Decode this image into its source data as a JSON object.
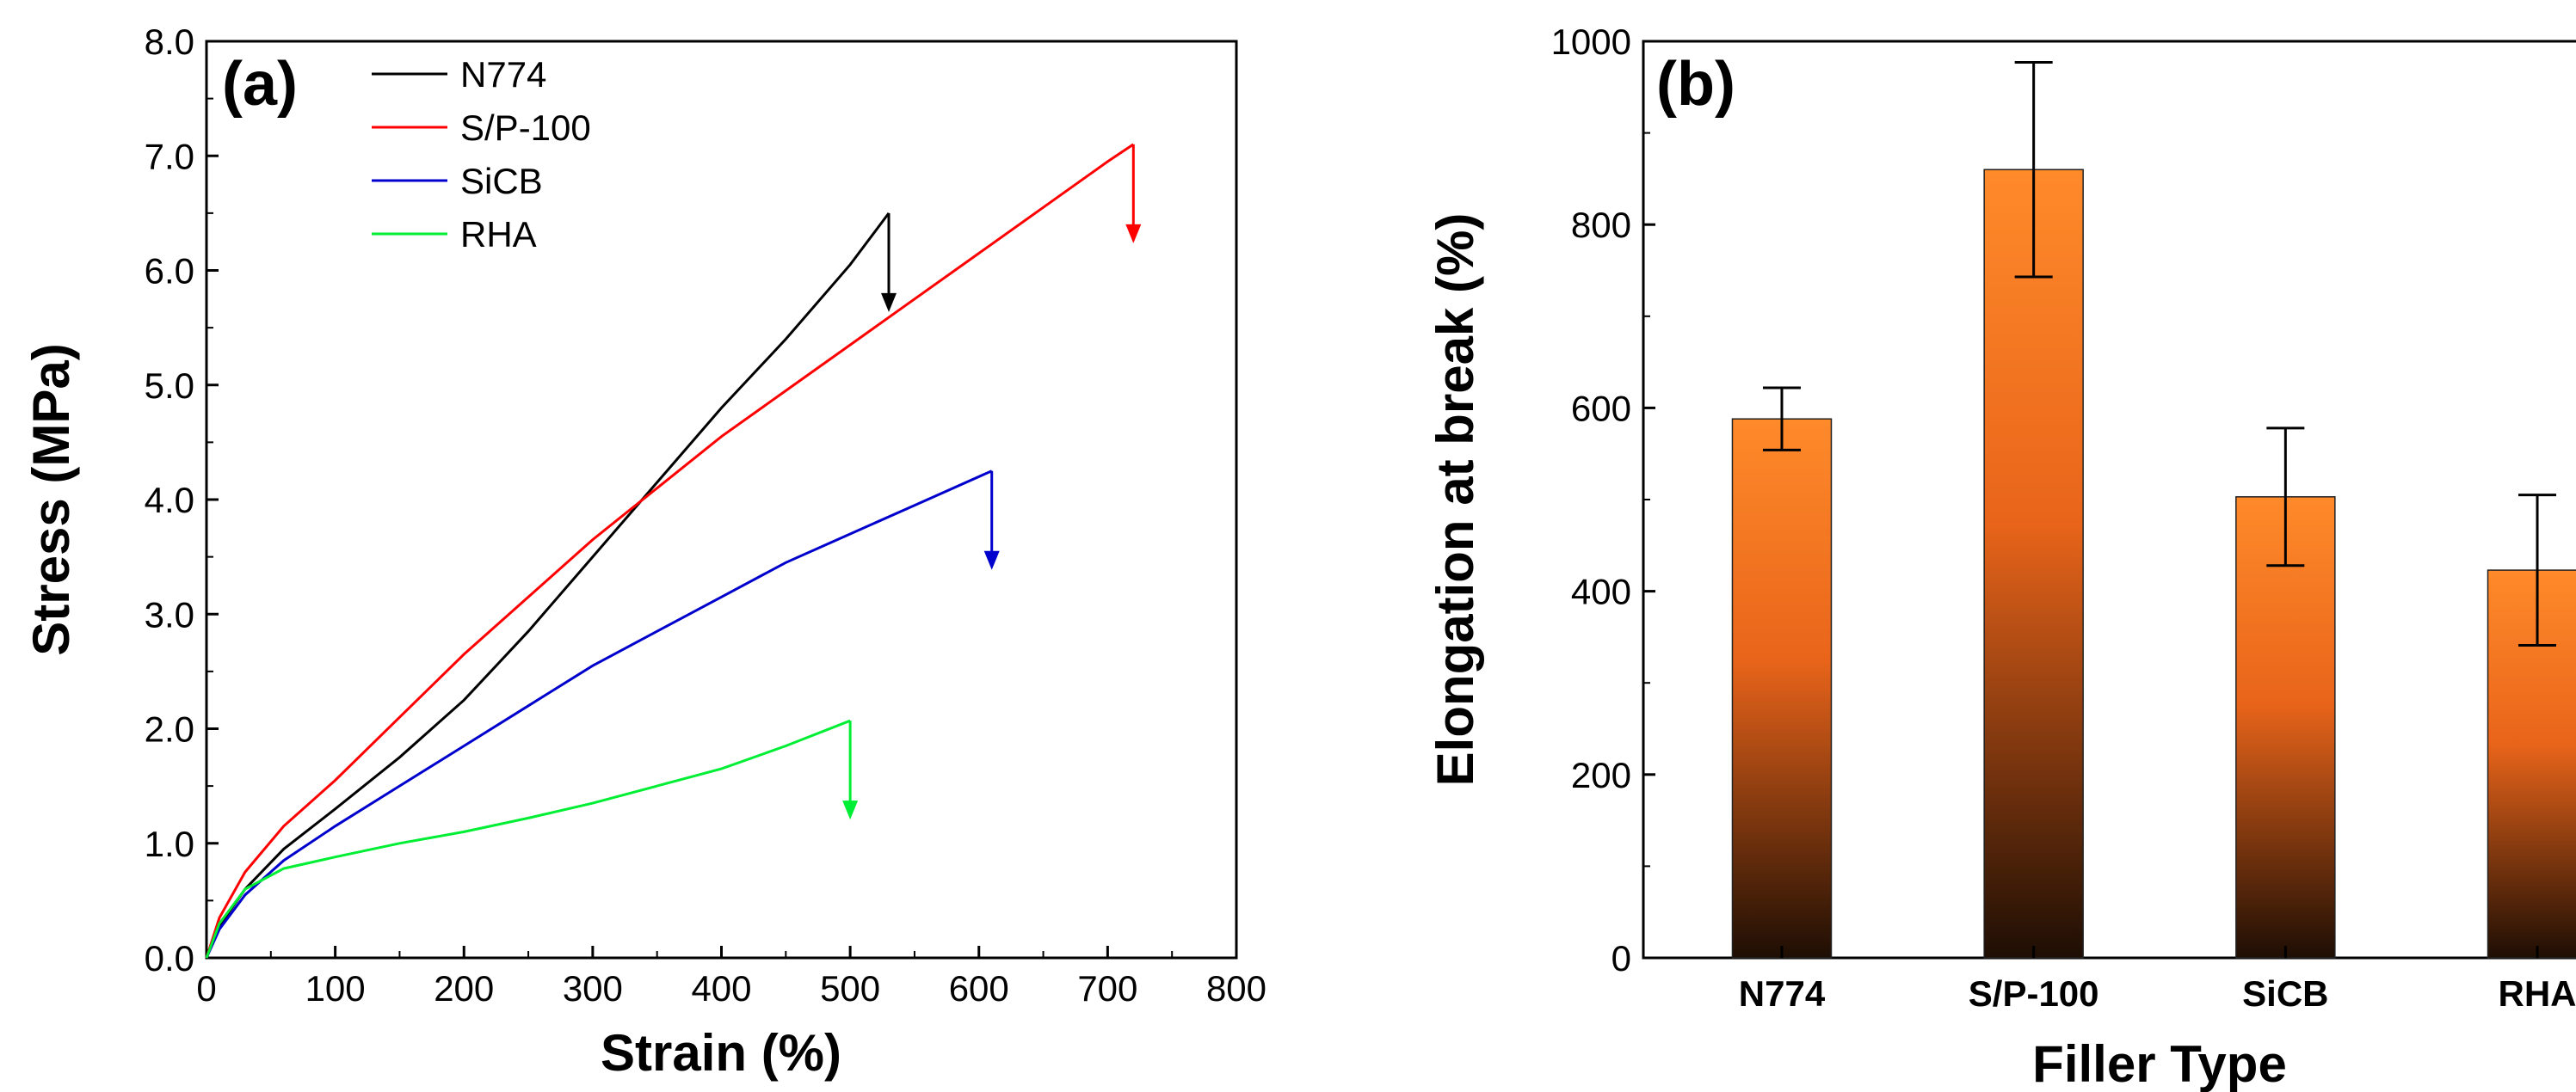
{
  "chart_data": [
    {
      "type": "line",
      "panel_label": "(a)",
      "xlabel": "Strain (%)",
      "ylabel": "Stress (MPa)",
      "xlim": [
        0,
        800
      ],
      "ylim": [
        0,
        8.0
      ],
      "xticks": [
        "0",
        "100",
        "200",
        "300",
        "400",
        "500",
        "600",
        "700",
        "800"
      ],
      "yticks": [
        "0.0",
        "1.0",
        "2.0",
        "3.0",
        "4.0",
        "5.0",
        "6.0",
        "7.0",
        "8.0"
      ],
      "legend": "top-left",
      "series": [
        {
          "name": "N774",
          "color": "#000000",
          "x": [
            0,
            10,
            30,
            60,
            100,
            150,
            200,
            250,
            300,
            350,
            400,
            450,
            500,
            530
          ],
          "y": [
            0,
            0.28,
            0.6,
            0.95,
            1.3,
            1.75,
            2.25,
            2.85,
            3.5,
            4.15,
            4.8,
            5.4,
            6.05,
            6.5
          ],
          "break_strain": 530
        },
        {
          "name": "S/P-100",
          "color": "#ff0000",
          "x": [
            0,
            10,
            30,
            60,
            100,
            150,
            200,
            250,
            300,
            350,
            400,
            450,
            500,
            550,
            600,
            650,
            700,
            720
          ],
          "y": [
            0,
            0.35,
            0.75,
            1.15,
            1.55,
            2.1,
            2.65,
            3.15,
            3.65,
            4.1,
            4.55,
            4.95,
            5.35,
            5.75,
            6.15,
            6.55,
            6.95,
            7.1
          ],
          "break_strain": 720
        },
        {
          "name": "SiCB",
          "color": "#0000cc",
          "x": [
            0,
            10,
            30,
            60,
            100,
            150,
            200,
            250,
            300,
            350,
            400,
            450,
            500,
            550,
            610
          ],
          "y": [
            0,
            0.25,
            0.55,
            0.85,
            1.15,
            1.5,
            1.85,
            2.2,
            2.55,
            2.85,
            3.15,
            3.45,
            3.7,
            3.95,
            4.25
          ],
          "break_strain": 610
        },
        {
          "name": "RHA",
          "color": "#00ee33",
          "x": [
            0,
            10,
            30,
            60,
            100,
            150,
            200,
            250,
            300,
            350,
            400,
            450,
            500
          ],
          "y": [
            0,
            0.3,
            0.6,
            0.78,
            0.88,
            1.0,
            1.1,
            1.22,
            1.35,
            1.5,
            1.65,
            1.85,
            2.07
          ],
          "break_strain": 500
        }
      ]
    },
    {
      "type": "bar",
      "panel_label": "(b)",
      "xlabel": "Filler Type",
      "ylabel": "Elongation at break (%)",
      "ylim": [
        0,
        1000
      ],
      "yticks": [
        "0",
        "200",
        "400",
        "600",
        "800",
        "1000"
      ],
      "categories": [
        "N774",
        "S/P-100",
        "SiCB",
        "RHA"
      ],
      "values": [
        588,
        860,
        503,
        423
      ],
      "errors": [
        34,
        117,
        75,
        82
      ],
      "colors": {
        "top": "#ff8a2a",
        "mid": "#e8641a",
        "bottom": "#1e0e04"
      }
    }
  ]
}
